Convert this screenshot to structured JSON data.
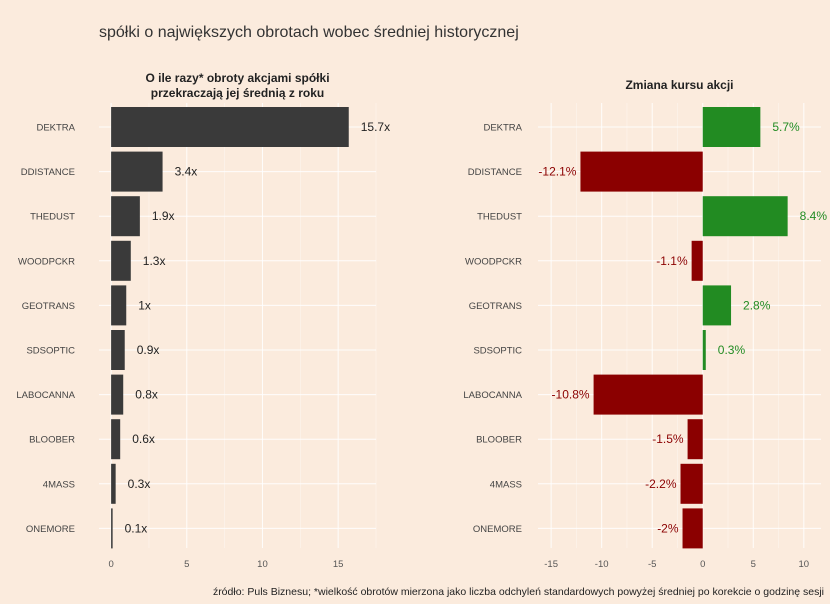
{
  "title": "spółki o największych obrotach wobec średniej historycznej",
  "caption": "źródło: Puls Biznesu; *wielkość obrotów mierzona jako liczba odchyleń standardowych powyżej średniej po korekcie o godzinę sesji",
  "colors": {
    "background": "#fbebdd",
    "left_bar": "#3a3a3a",
    "positive": "#228b22",
    "negative": "#8b0000",
    "grid": "#ffffff"
  },
  "chart_data": [
    {
      "type": "bar",
      "orientation": "horizontal",
      "title_lines": [
        "O ile razy* obroty akcjami spółki",
        "przekraczają jej średnią z roku"
      ],
      "categories": [
        "DEKTRA",
        "DDISTANCE",
        "THEDUST",
        "WOODPCKR",
        "GEOTRANS",
        "SDSOPTIC",
        "LABOCANNA",
        "BLOOBER",
        "4MASS",
        "ONEMORE"
      ],
      "values": [
        15.7,
        3.4,
        1.9,
        1.3,
        1.0,
        0.9,
        0.8,
        0.6,
        0.3,
        0.1
      ],
      "labels": [
        "15.7x",
        "3.4x",
        "1.9x",
        "1.3x",
        "1x",
        "0.9x",
        "0.8x",
        "0.6x",
        "0.3x",
        "0.1x"
      ],
      "xticks": [
        0,
        5,
        10,
        15
      ],
      "xlim": [
        -0.8,
        17.5
      ],
      "grid": true
    },
    {
      "type": "bar",
      "orientation": "horizontal",
      "title_lines": [
        "Zmiana kursu akcji"
      ],
      "categories": [
        "DEKTRA",
        "DDISTANCE",
        "THEDUST",
        "WOODPCKR",
        "GEOTRANS",
        "SDSOPTIC",
        "LABOCANNA",
        "BLOOBER",
        "4MASS",
        "ONEMORE"
      ],
      "values": [
        5.7,
        -12.1,
        8.4,
        -1.1,
        2.8,
        0.3,
        -10.8,
        -1.5,
        -2.2,
        -2.0
      ],
      "labels": [
        "5.7%",
        "-12.1%",
        "8.4%",
        "-1.1%",
        "2.8%",
        "0.3%",
        "-10.8%",
        "-1.5%",
        "-2.2%",
        "-2%"
      ],
      "xticks": [
        -15,
        -10,
        -5,
        0,
        5,
        10
      ],
      "xlim": [
        -16.3,
        11.7
      ],
      "grid": true
    }
  ]
}
